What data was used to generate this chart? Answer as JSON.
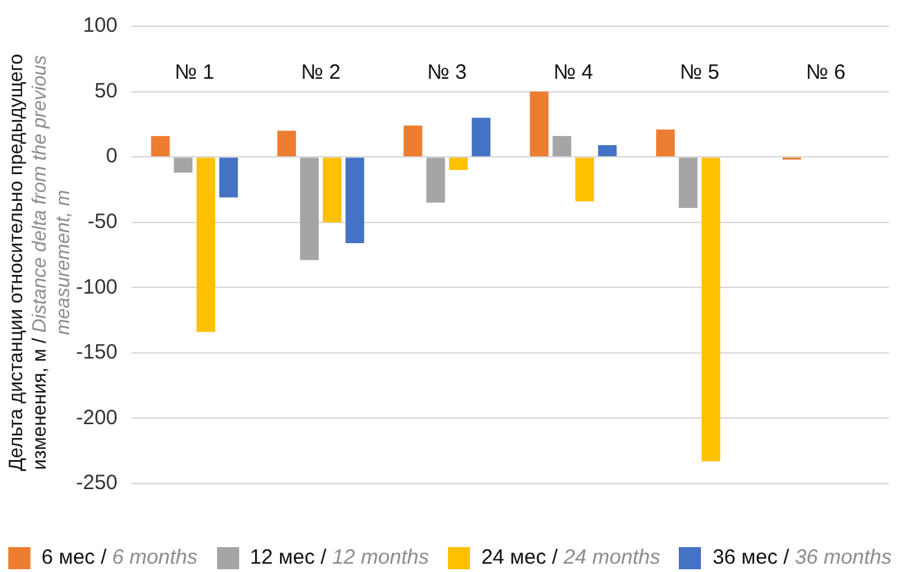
{
  "chart_data": {
    "type": "bar",
    "ylabel": "Дельта дистанции относительно предыдущего изменения, м / Distance delta from the previous measurement, m",
    "categories": [
      "№ 1",
      "№ 2",
      "№ 3",
      "№ 4",
      "№ 5",
      "№ 6"
    ],
    "series": [
      {
        "name": "6 мес / 6 months",
        "color": "#ed7d31",
        "values": [
          16,
          20,
          24,
          50,
          21,
          -2
        ]
      },
      {
        "name": "12 мес / 12 months",
        "color": "#a5a5a5",
        "values": [
          -12,
          -79,
          -35,
          16,
          -39,
          null
        ]
      },
      {
        "name": "24 мес / 24 months",
        "color": "#ffc000",
        "values": [
          -134,
          -50,
          -10,
          -34,
          -233,
          null
        ]
      },
      {
        "name": "36 мес / 36 months",
        "color": "#4472c4",
        "values": [
          -31,
          -66,
          30,
          9,
          null,
          null
        ]
      }
    ],
    "ylim": [
      -250,
      100
    ],
    "yticks": [
      -250,
      -200,
      -150,
      -100,
      -50,
      0,
      50,
      100
    ],
    "grid": "y",
    "legend": "bottom"
  }
}
